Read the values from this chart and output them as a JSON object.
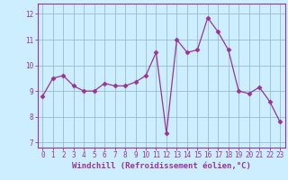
{
  "x": [
    0,
    1,
    2,
    3,
    4,
    5,
    6,
    7,
    8,
    9,
    10,
    11,
    12,
    13,
    14,
    15,
    16,
    17,
    18,
    19,
    20,
    21,
    22,
    23
  ],
  "y": [
    8.8,
    9.5,
    9.6,
    9.2,
    9.0,
    9.0,
    9.3,
    9.2,
    9.2,
    9.35,
    9.6,
    10.5,
    7.35,
    11.0,
    10.5,
    10.6,
    11.85,
    11.3,
    10.6,
    9.0,
    8.9,
    9.15,
    8.6,
    7.8
  ],
  "line_color": "#993399",
  "marker": "D",
  "marker_size": 2.5,
  "bg_color": "#cceeff",
  "grid_color": "#99bbcc",
  "xlabel": "Windchill (Refroidissement éolien,°C)",
  "xlabel_fontsize": 6.5,
  "tick_fontsize": 5.5,
  "ylabel_ticks": [
    7,
    8,
    9,
    10,
    11,
    12
  ],
  "xlim": [
    -0.5,
    23.5
  ],
  "ylim": [
    6.8,
    12.4
  ]
}
